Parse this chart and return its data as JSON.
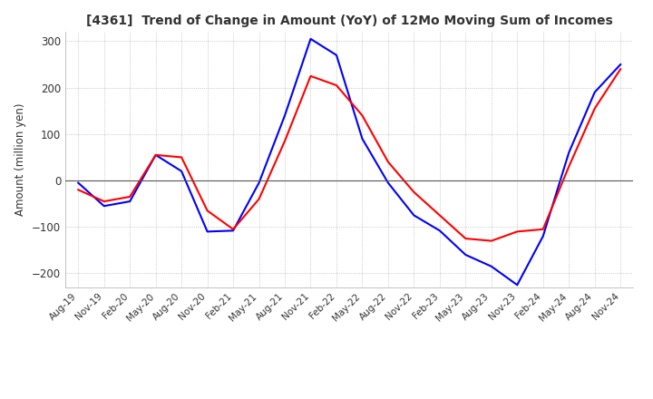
{
  "title": "[4361]  Trend of Change in Amount (YoY) of 12Mo Moving Sum of Incomes",
  "ylabel": "Amount (million yen)",
  "ylim": [
    -230,
    320
  ],
  "yticks": [
    -200,
    -100,
    0,
    100,
    200,
    300
  ],
  "background_color": "#ffffff",
  "grid_color": "#aaaaaa",
  "ordinary_income_color": "#0000ff",
  "net_income_color": "#ff0000",
  "x_labels": [
    "Aug-19",
    "Nov-19",
    "Feb-20",
    "May-20",
    "Aug-20",
    "Nov-20",
    "Feb-21",
    "May-21",
    "Aug-21",
    "Nov-21",
    "Feb-22",
    "May-22",
    "Aug-22",
    "Nov-22",
    "Feb-23",
    "May-23",
    "Aug-23",
    "Nov-23",
    "Feb-24",
    "May-24",
    "Aug-24",
    "Nov-24"
  ],
  "ordinary_income": [
    -5,
    -55,
    -45,
    55,
    20,
    -110,
    -108,
    -5,
    140,
    305,
    270,
    90,
    -5,
    -75,
    -108,
    -160,
    -185,
    -225,
    -120,
    60,
    190,
    250
  ],
  "net_income": [
    -20,
    -45,
    -35,
    55,
    50,
    -65,
    -105,
    -40,
    85,
    225,
    205,
    140,
    40,
    -25,
    -75,
    -125,
    -130,
    -110,
    -105,
    30,
    155,
    240
  ]
}
